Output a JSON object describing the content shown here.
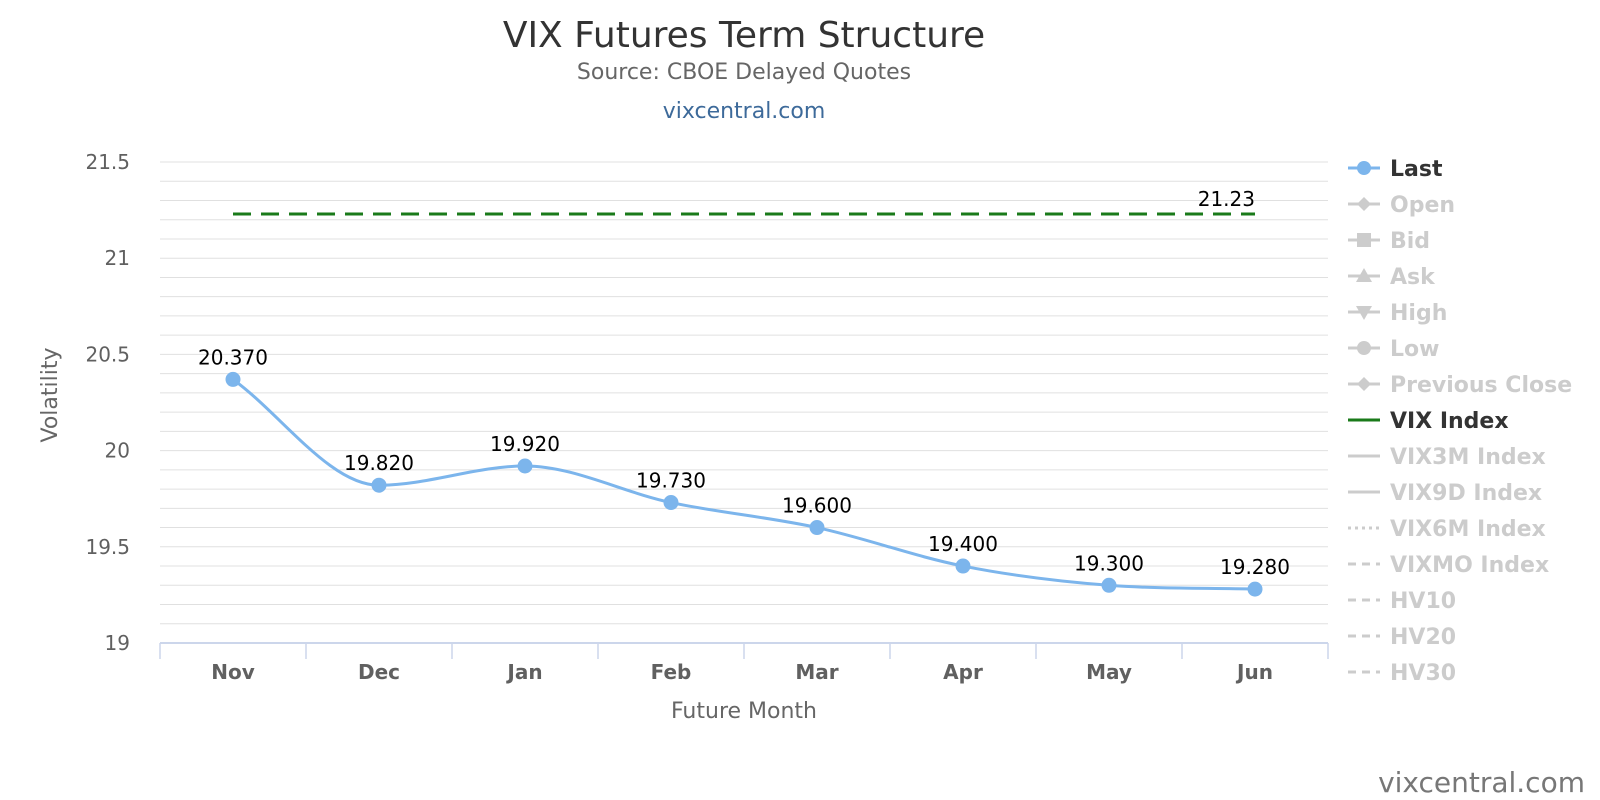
{
  "header": {
    "title": "VIX Futures Term Structure",
    "subtitle": "Source: CBOE Delayed Quotes",
    "site_link": "vixcentral.com"
  },
  "watermark": "vixcentral.com",
  "colors": {
    "last": "#7cb5ec",
    "vix_index": "#1a7a1a",
    "legend_inactive": "#cccccc",
    "legend_active_text": "#333333",
    "grid": "#e0e0e0",
    "axis": "#ccd6eb"
  },
  "chart_data": {
    "type": "line",
    "title": "VIX Futures Term Structure",
    "subtitle": "Source: CBOE Delayed Quotes",
    "xlabel": "Future Month",
    "ylabel": "Volatility",
    "categories": [
      "Nov",
      "Dec",
      "Jan",
      "Feb",
      "Mar",
      "Apr",
      "May",
      "Jun"
    ],
    "ylim": [
      19,
      21.5
    ],
    "yticks": [
      19,
      19.5,
      20,
      20.5,
      21,
      21.5
    ],
    "yticks_labels": [
      "19",
      "19.5",
      "20",
      "20.5",
      "21",
      "21.5"
    ],
    "grid": true,
    "legend_position": "right",
    "series": [
      {
        "name": "Last",
        "values": [
          20.37,
          19.82,
          19.92,
          19.73,
          19.6,
          19.4,
          19.3,
          19.28
        ],
        "labels": [
          "20.370",
          "19.820",
          "19.920",
          "19.730",
          "19.600",
          "19.400",
          "19.300",
          "19.280"
        ],
        "color": "#7cb5ec",
        "style": "spline-with-markers"
      },
      {
        "name": "VIX Index",
        "value": 21.23,
        "label": "21.23",
        "color": "#1a7a1a",
        "style": "dashed"
      }
    ],
    "legend": [
      {
        "name": "Last",
        "active": true,
        "symbol": "line-circle"
      },
      {
        "name": "Open",
        "active": false,
        "symbol": "line-diamond"
      },
      {
        "name": "Bid",
        "active": false,
        "symbol": "line-square"
      },
      {
        "name": "Ask",
        "active": false,
        "symbol": "line-triangle"
      },
      {
        "name": "High",
        "active": false,
        "symbol": "line-triangle-down"
      },
      {
        "name": "Low",
        "active": false,
        "symbol": "line-circle"
      },
      {
        "name": "Previous Close",
        "active": false,
        "symbol": "line-diamond"
      },
      {
        "name": "VIX Index",
        "active": true,
        "symbol": "line"
      },
      {
        "name": "VIX3M Index",
        "active": false,
        "symbol": "line"
      },
      {
        "name": "VIX9D Index",
        "active": false,
        "symbol": "line"
      },
      {
        "name": "VIX6M Index",
        "active": false,
        "symbol": "dotted"
      },
      {
        "name": "VIXMO Index",
        "active": false,
        "symbol": "dashed"
      },
      {
        "name": "HV10",
        "active": false,
        "symbol": "dashed"
      },
      {
        "name": "HV20",
        "active": false,
        "symbol": "dashed"
      },
      {
        "name": "HV30",
        "active": false,
        "symbol": "dashed"
      }
    ]
  }
}
